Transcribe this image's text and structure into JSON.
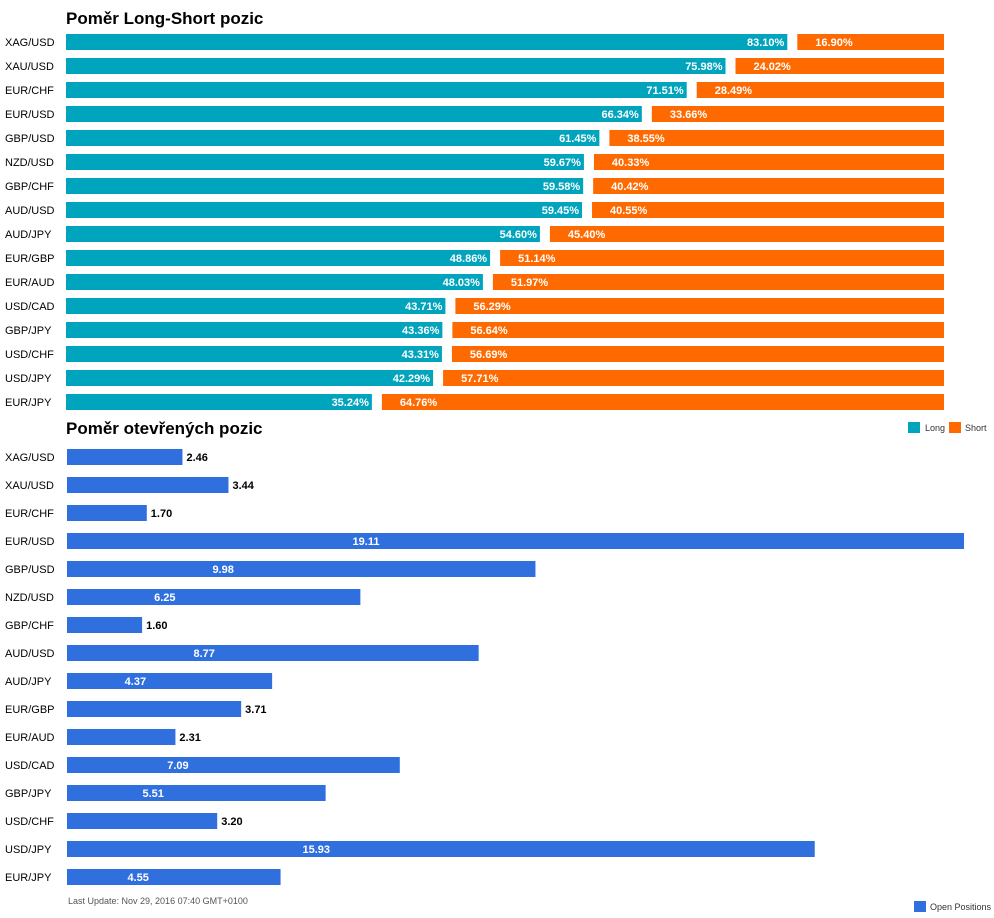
{
  "colors": {
    "long": "#00a4bd",
    "short": "#ff6a00",
    "open": "#2f6fde"
  },
  "chart_data": [
    {
      "type": "bar",
      "stacked": true,
      "orientation": "horizontal",
      "title": "Poměr Long-Short pozic",
      "categories": [
        "XAG/USD",
        "XAU/USD",
        "EUR/CHF",
        "EUR/USD",
        "GBP/USD",
        "NZD/USD",
        "GBP/CHF",
        "AUD/USD",
        "AUD/JPY",
        "EUR/GBP",
        "EUR/AUD",
        "USD/CAD",
        "GBP/JPY",
        "USD/CHF",
        "USD/JPY",
        "EUR/JPY"
      ],
      "series": [
        {
          "name": "Long",
          "color": "#00a4bd",
          "values": [
            83.1,
            75.98,
            71.51,
            66.34,
            61.45,
            59.67,
            59.58,
            59.45,
            54.6,
            48.86,
            48.03,
            43.71,
            43.36,
            43.31,
            42.29,
            35.24
          ],
          "labels": [
            "83.10%",
            "75.98%",
            "71.51%",
            "66.34%",
            "61.45%",
            "59.67%",
            "59.58%",
            "59.45%",
            "54.60%",
            "48.86%",
            "48.03%",
            "43.71%",
            "43.36%",
            "43.31%",
            "42.29%",
            "35.24%"
          ]
        },
        {
          "name": "Short",
          "color": "#ff6a00",
          "values": [
            16.9,
            24.02,
            28.49,
            33.66,
            38.55,
            40.33,
            40.42,
            40.55,
            45.4,
            51.14,
            51.97,
            56.29,
            56.64,
            56.69,
            57.71,
            64.76
          ],
          "labels": [
            "16.90%",
            "24.02%",
            "28.49%",
            "33.66%",
            "38.55%",
            "40.33%",
            "40.42%",
            "40.55%",
            "45.40%",
            "51.14%",
            "51.97%",
            "56.29%",
            "56.64%",
            "56.69%",
            "57.71%",
            "64.76%"
          ]
        }
      ],
      "xlim": [
        0,
        100
      ],
      "legend": "bottom-right"
    },
    {
      "type": "bar",
      "orientation": "horizontal",
      "title": "Poměr otevřených pozic",
      "categories": [
        "XAG/USD",
        "XAU/USD",
        "EUR/CHF",
        "EUR/USD",
        "GBP/USD",
        "NZD/USD",
        "GBP/CHF",
        "AUD/USD",
        "AUD/JPY",
        "EUR/GBP",
        "EUR/AUD",
        "USD/CAD",
        "GBP/JPY",
        "USD/CHF",
        "USD/JPY",
        "EUR/JPY"
      ],
      "series": [
        {
          "name": "Open Positions",
          "color": "#2f6fde",
          "values": [
            2.46,
            3.44,
            1.7,
            19.11,
            9.98,
            6.25,
            1.6,
            8.77,
            4.37,
            3.71,
            2.31,
            7.09,
            5.51,
            3.2,
            15.93,
            4.55
          ],
          "labels": [
            "2.46",
            "3.44",
            "1.70",
            "19.11",
            "9.98",
            "6.25",
            "1.60",
            "8.77",
            "4.37",
            "3.71",
            "2.31",
            "7.09",
            "5.51",
            "3.20",
            "15.93",
            "4.55"
          ]
        }
      ],
      "xlim": [
        0,
        19.11
      ],
      "legend": "bottom-right"
    }
  ],
  "footer": {
    "last_update": "Last Update: Nov 29, 2016 07:40 GMT+0100"
  }
}
